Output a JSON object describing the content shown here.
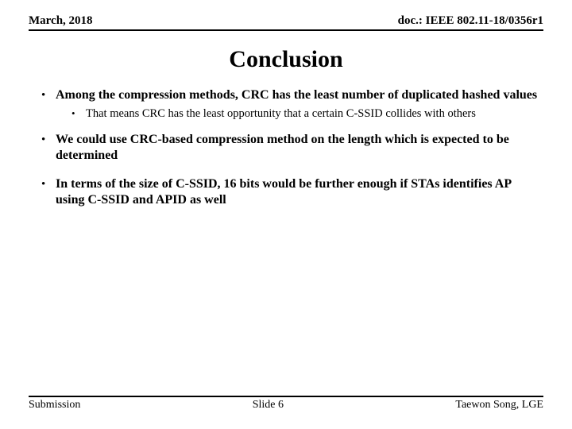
{
  "header": {
    "left": "March, 2018",
    "right": "doc.: IEEE 802.11-18/0356r1"
  },
  "title": "Conclusion",
  "bullets": {
    "b1": "Among the compression methods, CRC has the least number of duplicated hashed values",
    "b1_sub": "That means CRC has the least opportunity that a certain C-SSID collides with others",
    "b2": "We could use CRC-based compression method on the length which is expected to be determined",
    "b3": "In terms of the size of C-SSID, 16 bits would be further enough if STAs identifies AP using C-SSID and APID as well"
  },
  "footer": {
    "left": "Submission",
    "center": "Slide 6",
    "right": "Taewon Song, LGE"
  },
  "colors": {
    "background": "#ffffff",
    "text": "#000000",
    "rule": "#000000"
  }
}
